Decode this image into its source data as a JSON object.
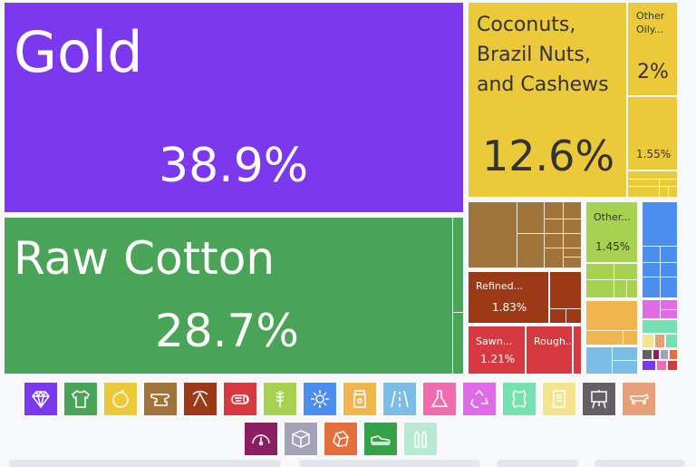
{
  "chart_data": {
    "type": "treemap",
    "items": [
      {
        "name": "Gold",
        "share": "38.9%",
        "value": 38.9
      },
      {
        "name": "Raw Cotton",
        "share": "28.7%",
        "value": 28.7
      },
      {
        "name": "Coconuts, Brazil Nuts, and Cashews",
        "share": "12.6%",
        "value": 12.6
      },
      {
        "name": "Other Oily...",
        "share": "2%",
        "value": 2
      },
      {
        "name": "",
        "share": "1.55%",
        "value": 1.55
      },
      {
        "name": "Refined...",
        "share": "1.83%",
        "value": 1.83
      },
      {
        "name": "Other...",
        "share": "1.45%",
        "value": 1.45
      },
      {
        "name": "Sawn...",
        "share": "1.21%",
        "value": 1.21
      },
      {
        "name": "Rough...",
        "share": "",
        "value": null
      }
    ]
  },
  "labels": {
    "gold_name": "Gold",
    "gold_share": "38.9%",
    "cotton_name": "Raw Cotton",
    "cotton_share": "28.7%",
    "nuts_name_1": "Coconuts,",
    "nuts_name_2": "Brazil Nuts,",
    "nuts_name_3": "and Cashews",
    "nuts_share": "12.6%",
    "oily_name_1": "Other",
    "oily_name_2": "Oily...",
    "oily_share": "2%",
    "small_share": "1.55%",
    "refined_name": "Refined...",
    "refined_share": "1.83%",
    "otherveg_name": "Other...",
    "otherveg_share": "1.45%",
    "sawn_name": "Sawn...",
    "sawn_share": "1.21%",
    "rough_name": "Rough..."
  },
  "legend": {
    "row1": [
      {
        "icon": "diamond-icon",
        "color": "#7b38ec"
      },
      {
        "icon": "tshirt-icon",
        "color": "#4aa458"
      },
      {
        "icon": "orange-icon",
        "color": "#ecc93a"
      },
      {
        "icon": "anvil-icon",
        "color": "#a0733a"
      },
      {
        "icon": "pickaxe-icon",
        "color": "#9c3a17"
      },
      {
        "icon": "log-icon",
        "color": "#d6393f"
      },
      {
        "icon": "wheat-icon",
        "color": "#a7d150"
      },
      {
        "icon": "gear-icon",
        "color": "#4b8ef0"
      },
      {
        "icon": "jar-icon",
        "color": "#f0b54f"
      },
      {
        "icon": "road-icon",
        "color": "#7cbde8"
      },
      {
        "icon": "flask-icon",
        "color": "#f06cae"
      },
      {
        "icon": "recycle-icon",
        "color": "#e06be8"
      },
      {
        "icon": "hide-icon",
        "color": "#75e0b0"
      },
      {
        "icon": "scroll-icon",
        "color": "#f3e38a"
      },
      {
        "icon": "easel-icon",
        "color": "#655e66"
      },
      {
        "icon": "cow-icon",
        "color": "#e8a07a"
      }
    ],
    "row2": [
      {
        "icon": "gauge-icon",
        "color": "#8c1f63"
      },
      {
        "icon": "box-icon",
        "color": "#a4a2b8"
      },
      {
        "icon": "stone-icon",
        "color": "#e46f3d"
      },
      {
        "icon": "shoe-icon",
        "color": "#35a24a"
      },
      {
        "icon": "bullets-icon",
        "color": "#b7ead3"
      }
    ]
  }
}
